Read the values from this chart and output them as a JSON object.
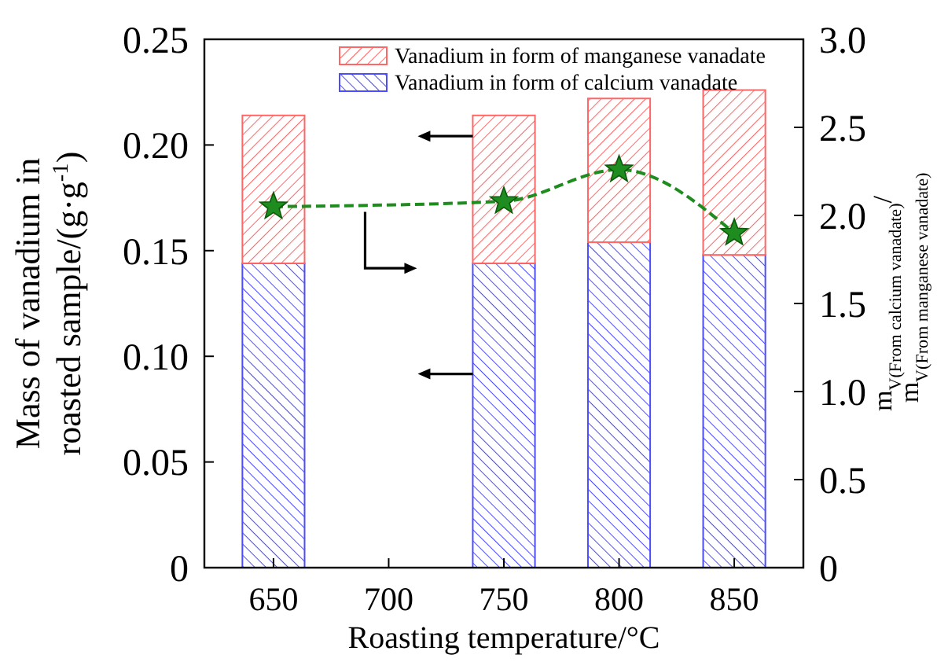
{
  "chart_data": {
    "type": "bar",
    "stacked": true,
    "xlabel": "Roasting temperature/°C",
    "ylabel": "Mass of vanadium in roasted sample/(g·g$^{-1}$)",
    "y2label": "m$_{V(From calcium vanadate)}$/m$_{V(From manganese vanadate)}$",
    "x": [
      650,
      750,
      800,
      850
    ],
    "xlim": [
      620,
      880
    ],
    "xticks": [
      650,
      700,
      750,
      800,
      850
    ],
    "ylim": [
      0,
      0.25
    ],
    "yticks": [
      {
        "value": 0,
        "label": "0"
      },
      0.05,
      {
        "value": 0.1,
        "label": "0.10"
      },
      0.15,
      {
        "value": 0.2,
        "label": "0.20"
      },
      0.25
    ],
    "y2lim": [
      0,
      3
    ],
    "y2ticks": [
      {
        "value": 0,
        "label": "0"
      },
      0.5,
      {
        "value": 1,
        "label": "1.0"
      },
      1.5,
      {
        "value": 2,
        "label": "2.0"
      },
      2.5,
      {
        "value": 3,
        "label": "3.0"
      }
    ],
    "series": [
      {
        "name": "Vanadium in form of calcium vanadate",
        "color": "#4d4dff",
        "values": [
          0.144,
          0.144,
          0.154,
          0.148
        ]
      },
      {
        "name": "Vanadium in form of manganese vanadate",
        "color": "#ff6666",
        "values": [
          0.07,
          0.07,
          0.068,
          0.078
        ]
      },
      {
        "type": "line",
        "axis": "y2",
        "color": "#1e8c1e",
        "marker": "star",
        "line_style": "dashed",
        "values": [
          2.05,
          2.08,
          2.26,
          1.9
        ]
      }
    ],
    "legend": "top right"
  }
}
